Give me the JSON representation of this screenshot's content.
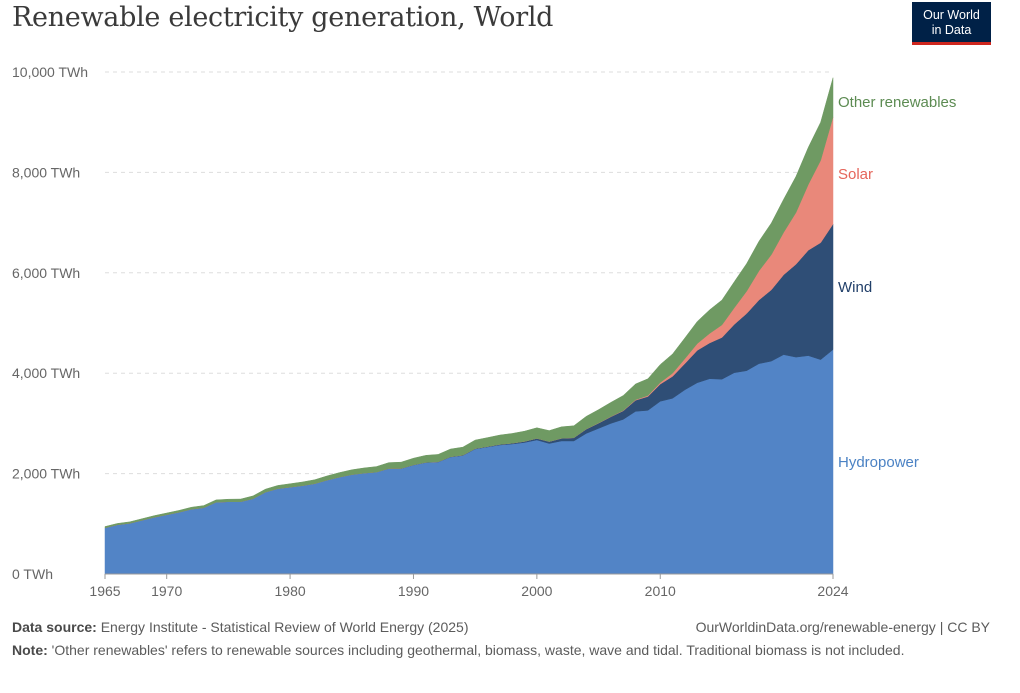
{
  "title": "Renewable electricity generation, World",
  "logo": {
    "line1": "Our World",
    "line2": "in Data"
  },
  "footer": {
    "source_label": "Data source:",
    "source_text": "Energy Institute - Statistical Review of World Energy (2025)",
    "url": "OurWorldinData.org/renewable-energy",
    "license": "| CC BY",
    "note_label": "Note:",
    "note_text": "'Other renewables' refers to renewable sources including geothermal, biomass, waste, wave and tidal. Traditional biomass is not included."
  },
  "colors": {
    "Hydropower": "#5284c6",
    "Wind": "#2f4e76",
    "Solar": "#e9887a",
    "Other renewables": "#6f9a63"
  },
  "label_colors": {
    "Hydropower": "#4b82c4",
    "Wind": "#213f69",
    "Solar": "#e5655a",
    "Other renewables": "#5c8b52"
  },
  "chart_data": {
    "type": "area",
    "stacked": true,
    "title": "Renewable electricity generation, World",
    "unit": "TWh",
    "xlim": [
      1965,
      2024
    ],
    "ylim": [
      0,
      10000
    ],
    "yticks": [
      0,
      2000,
      4000,
      6000,
      8000,
      10000
    ],
    "ytick_labels": [
      "0 TWh",
      "2,000 TWh",
      "4,000 TWh",
      "6,000 TWh",
      "8,000 TWh",
      "10,000 TWh"
    ],
    "xticks": [
      1965,
      1970,
      1980,
      1990,
      2000,
      2010,
      2024
    ],
    "xtick_labels": [
      "1965",
      "1970",
      "1980",
      "1990",
      "2000",
      "2010",
      "2024"
    ],
    "x": [
      1965,
      1966,
      1967,
      1968,
      1969,
      1970,
      1971,
      1972,
      1973,
      1974,
      1975,
      1976,
      1977,
      1978,
      1979,
      1980,
      1981,
      1982,
      1983,
      1984,
      1985,
      1986,
      1987,
      1988,
      1989,
      1990,
      1991,
      1992,
      1993,
      1994,
      1995,
      1996,
      1997,
      1998,
      1999,
      2000,
      2001,
      2002,
      2003,
      2004,
      2005,
      2006,
      2007,
      2008,
      2009,
      2010,
      2011,
      2012,
      2013,
      2014,
      2015,
      2016,
      2017,
      2018,
      2019,
      2020,
      2021,
      2022,
      2023,
      2024
    ],
    "series": [
      {
        "name": "Hydropower",
        "values": [
          920,
          980,
          1010,
          1070,
          1130,
          1180,
          1230,
          1290,
          1320,
          1430,
          1440,
          1440,
          1500,
          1630,
          1700,
          1730,
          1760,
          1800,
          1870,
          1930,
          1980,
          2010,
          2030,
          2100,
          2100,
          2170,
          2220,
          2230,
          2330,
          2360,
          2490,
          2530,
          2570,
          2590,
          2620,
          2670,
          2600,
          2650,
          2650,
          2800,
          2900,
          3000,
          3080,
          3240,
          3260,
          3440,
          3500,
          3670,
          3810,
          3890,
          3880,
          4010,
          4050,
          4190,
          4240,
          4370,
          4320,
          4350,
          4270,
          4470
        ]
      },
      {
        "name": "Wind",
        "values": [
          0,
          0,
          0,
          0,
          0,
          0,
          0,
          0,
          0,
          0,
          0,
          0,
          0,
          0,
          0,
          0,
          0,
          0,
          0,
          0,
          0,
          0,
          0,
          2,
          3,
          4,
          4,
          5,
          6,
          7,
          8,
          9,
          12,
          16,
          21,
          31,
          38,
          52,
          63,
          85,
          104,
          133,
          170,
          221,
          276,
          342,
          437,
          522,
          645,
          712,
          832,
          963,
          1138,
          1268,
          1420,
          1590,
          1850,
          2100,
          2330,
          2500
        ]
      },
      {
        "name": "Solar",
        "values": [
          0,
          0,
          0,
          0,
          0,
          0,
          0,
          0,
          0,
          0,
          0,
          0,
          0,
          0,
          0,
          0,
          0,
          0,
          0,
          0,
          0,
          0,
          0,
          0,
          0,
          0,
          0,
          0,
          0,
          0,
          0,
          0,
          0,
          0,
          1,
          1,
          1,
          2,
          2,
          3,
          4,
          6,
          8,
          12,
          20,
          32,
          63,
          99,
          135,
          190,
          250,
          330,
          445,
          580,
          700,
          845,
          1030,
          1310,
          1640,
          2130
        ]
      },
      {
        "name": "Other renewables",
        "values": [
          25,
          27,
          29,
          31,
          33,
          35,
          37,
          40,
          43,
          46,
          50,
          53,
          56,
          60,
          64,
          68,
          73,
          78,
          84,
          90,
          96,
          103,
          110,
          117,
          125,
          133,
          140,
          147,
          153,
          160,
          170,
          178,
          186,
          194,
          203,
          211,
          218,
          228,
          238,
          252,
          266,
          280,
          297,
          313,
          333,
          358,
          383,
          413,
          440,
          470,
          495,
          520,
          550,
          590,
          630,
          660,
          720,
          740,
          760,
          785
        ]
      }
    ],
    "legend_position": "inline-right",
    "grid": true
  }
}
